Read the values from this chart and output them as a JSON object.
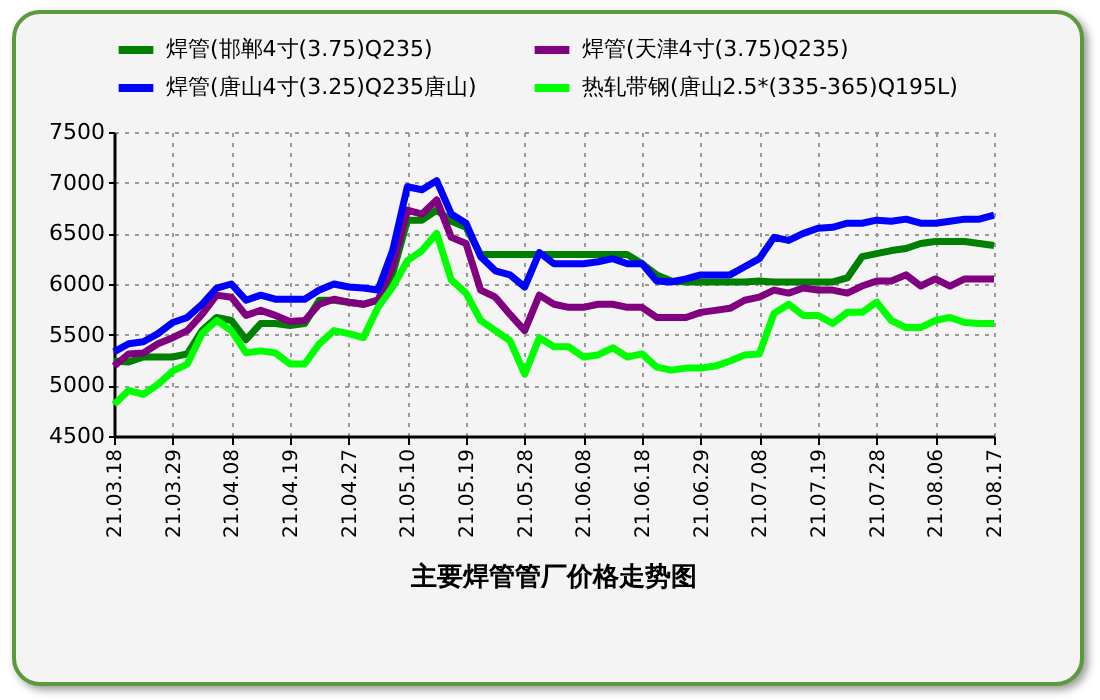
{
  "chart_data": {
    "type": "line",
    "title": "主要焊管管厂价格走势图",
    "categories": [
      "21.03.18",
      null,
      null,
      null,
      "21.03.29",
      null,
      null,
      null,
      "21.04.08",
      null,
      null,
      null,
      "21.04.19",
      null,
      null,
      null,
      "21.04.27",
      null,
      null,
      null,
      "21.05.10",
      null,
      null,
      null,
      "21.05.19",
      null,
      null,
      null,
      "21.05.28",
      null,
      null,
      null,
      "21.06.08",
      null,
      null,
      null,
      "21.06.18",
      null,
      null,
      null,
      "21.06.29",
      null,
      null,
      null,
      "21.07.08",
      null,
      null,
      null,
      "21.07.19",
      null,
      null,
      null,
      "21.07.28",
      null,
      null,
      null,
      "21.08.06",
      null,
      null,
      null,
      "21.08.17"
    ],
    "series": [
      {
        "name": "焊管(邯郸4寸(3.75)Q235)",
        "color": "#008000",
        "values": [
          5240,
          5230,
          5280,
          5280,
          5280,
          5310,
          5540,
          5670,
          5640,
          5450,
          5610,
          5610,
          5590,
          5610,
          5840,
          5840,
          5820,
          5800,
          5840,
          6100,
          6630,
          6630,
          6730,
          6620,
          6560,
          6290,
          6290,
          6290,
          6290,
          6290,
          6290,
          6290,
          6290,
          6290,
          6290,
          6290,
          6200,
          6090,
          6030,
          6020,
          6020,
          6020,
          6020,
          6020,
          6030,
          6020,
          6020,
          6020,
          6020,
          6020,
          6060,
          6270,
          6300,
          6330,
          6350,
          6400,
          6420,
          6420,
          6420,
          6400,
          6380
        ]
      },
      {
        "name": "焊管(天津4寸(3.75)Q235)",
        "color": "#800080",
        "values": [
          5190,
          5310,
          5320,
          5410,
          5470,
          5540,
          5700,
          5890,
          5870,
          5690,
          5740,
          5690,
          5630,
          5640,
          5800,
          5850,
          5820,
          5800,
          5840,
          6170,
          6730,
          6690,
          6830,
          6460,
          6400,
          5940,
          5870,
          5700,
          5540,
          5890,
          5800,
          5770,
          5770,
          5800,
          5800,
          5770,
          5770,
          5670,
          5670,
          5670,
          5720,
          5740,
          5760,
          5840,
          5870,
          5940,
          5910,
          5960,
          5940,
          5940,
          5910,
          5980,
          6030,
          6030,
          6090,
          5980,
          6050,
          5980,
          6050,
          6050,
          6050
        ]
      },
      {
        "name": "焊管(唐山4寸(3.25)Q235唐山)",
        "color": "#0000ff",
        "values": [
          5330,
          5410,
          5430,
          5510,
          5620,
          5670,
          5800,
          5960,
          6000,
          5840,
          5890,
          5850,
          5850,
          5850,
          5940,
          6000,
          5970,
          5960,
          5940,
          6330,
          6960,
          6930,
          7020,
          6690,
          6600,
          6270,
          6130,
          6090,
          5970,
          6310,
          6200,
          6200,
          6200,
          6220,
          6250,
          6200,
          6200,
          6030,
          6020,
          6050,
          6090,
          6090,
          6090,
          6170,
          6250,
          6460,
          6430,
          6500,
          6550,
          6560,
          6600,
          6600,
          6630,
          6620,
          6640,
          6600,
          6600,
          6620,
          6640,
          6640,
          6680
        ]
      },
      {
        "name": "热轧带钢(唐山2.5*(335-365)Q195L)",
        "color": "#00ff00",
        "values": [
          4810,
          4950,
          4910,
          5010,
          5140,
          5210,
          5510,
          5640,
          5540,
          5320,
          5340,
          5320,
          5210,
          5210,
          5410,
          5540,
          5510,
          5470,
          5770,
          5970,
          6230,
          6330,
          6500,
          6040,
          5910,
          5640,
          5540,
          5440,
          5110,
          5470,
          5380,
          5380,
          5280,
          5300,
          5370,
          5280,
          5310,
          5180,
          5150,
          5170,
          5170,
          5190,
          5240,
          5300,
          5310,
          5710,
          5800,
          5690,
          5690,
          5610,
          5720,
          5720,
          5820,
          5640,
          5570,
          5570,
          5640,
          5670,
          5620,
          5610,
          5610
        ]
      }
    ],
    "ylim": [
      4500,
      7500
    ],
    "yticks": [
      4500,
      5000,
      5500,
      6000,
      6500,
      7000,
      7500
    ],
    "grid": true,
    "legend": "top",
    "marker": "none",
    "line_style": "solid"
  }
}
